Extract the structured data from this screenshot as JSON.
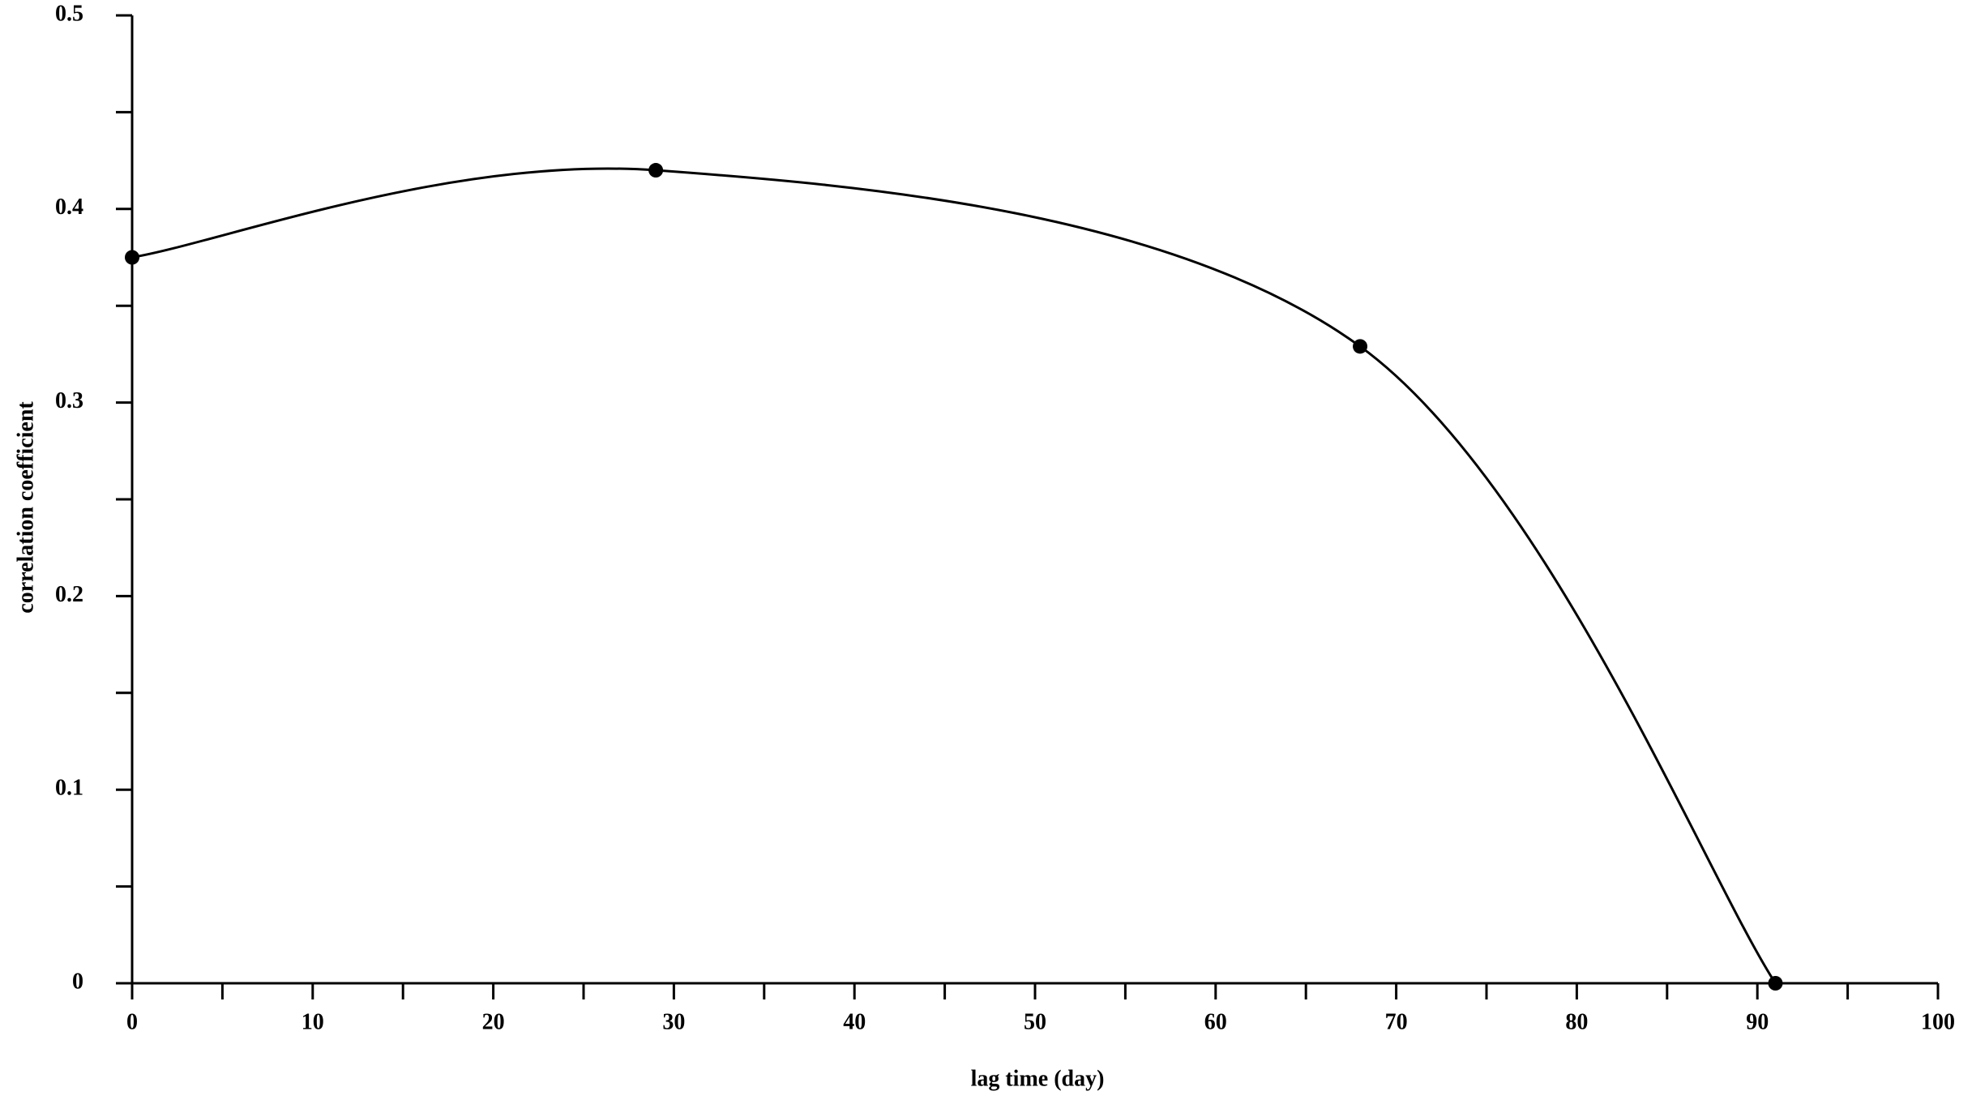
{
  "chart_data": {
    "type": "line",
    "xlabel": "lag time (day)",
    "ylabel": "correlation coefficient",
    "x": [
      0,
      29,
      68,
      91
    ],
    "series": [
      {
        "color": "#000000",
        "values": [
          0.375,
          0.42,
          0.329,
          0.0
        ]
      }
    ],
    "xlim": [
      0,
      100
    ],
    "xticks": [
      0,
      10,
      20,
      30,
      40,
      50,
      60,
      70,
      80,
      90,
      100
    ],
    "ylim": [
      0,
      0.5
    ],
    "yticks": [
      0,
      0.1,
      0.2,
      0.3,
      0.4,
      0.5
    ],
    "grid": false,
    "smooth": true,
    "markers": true
  }
}
